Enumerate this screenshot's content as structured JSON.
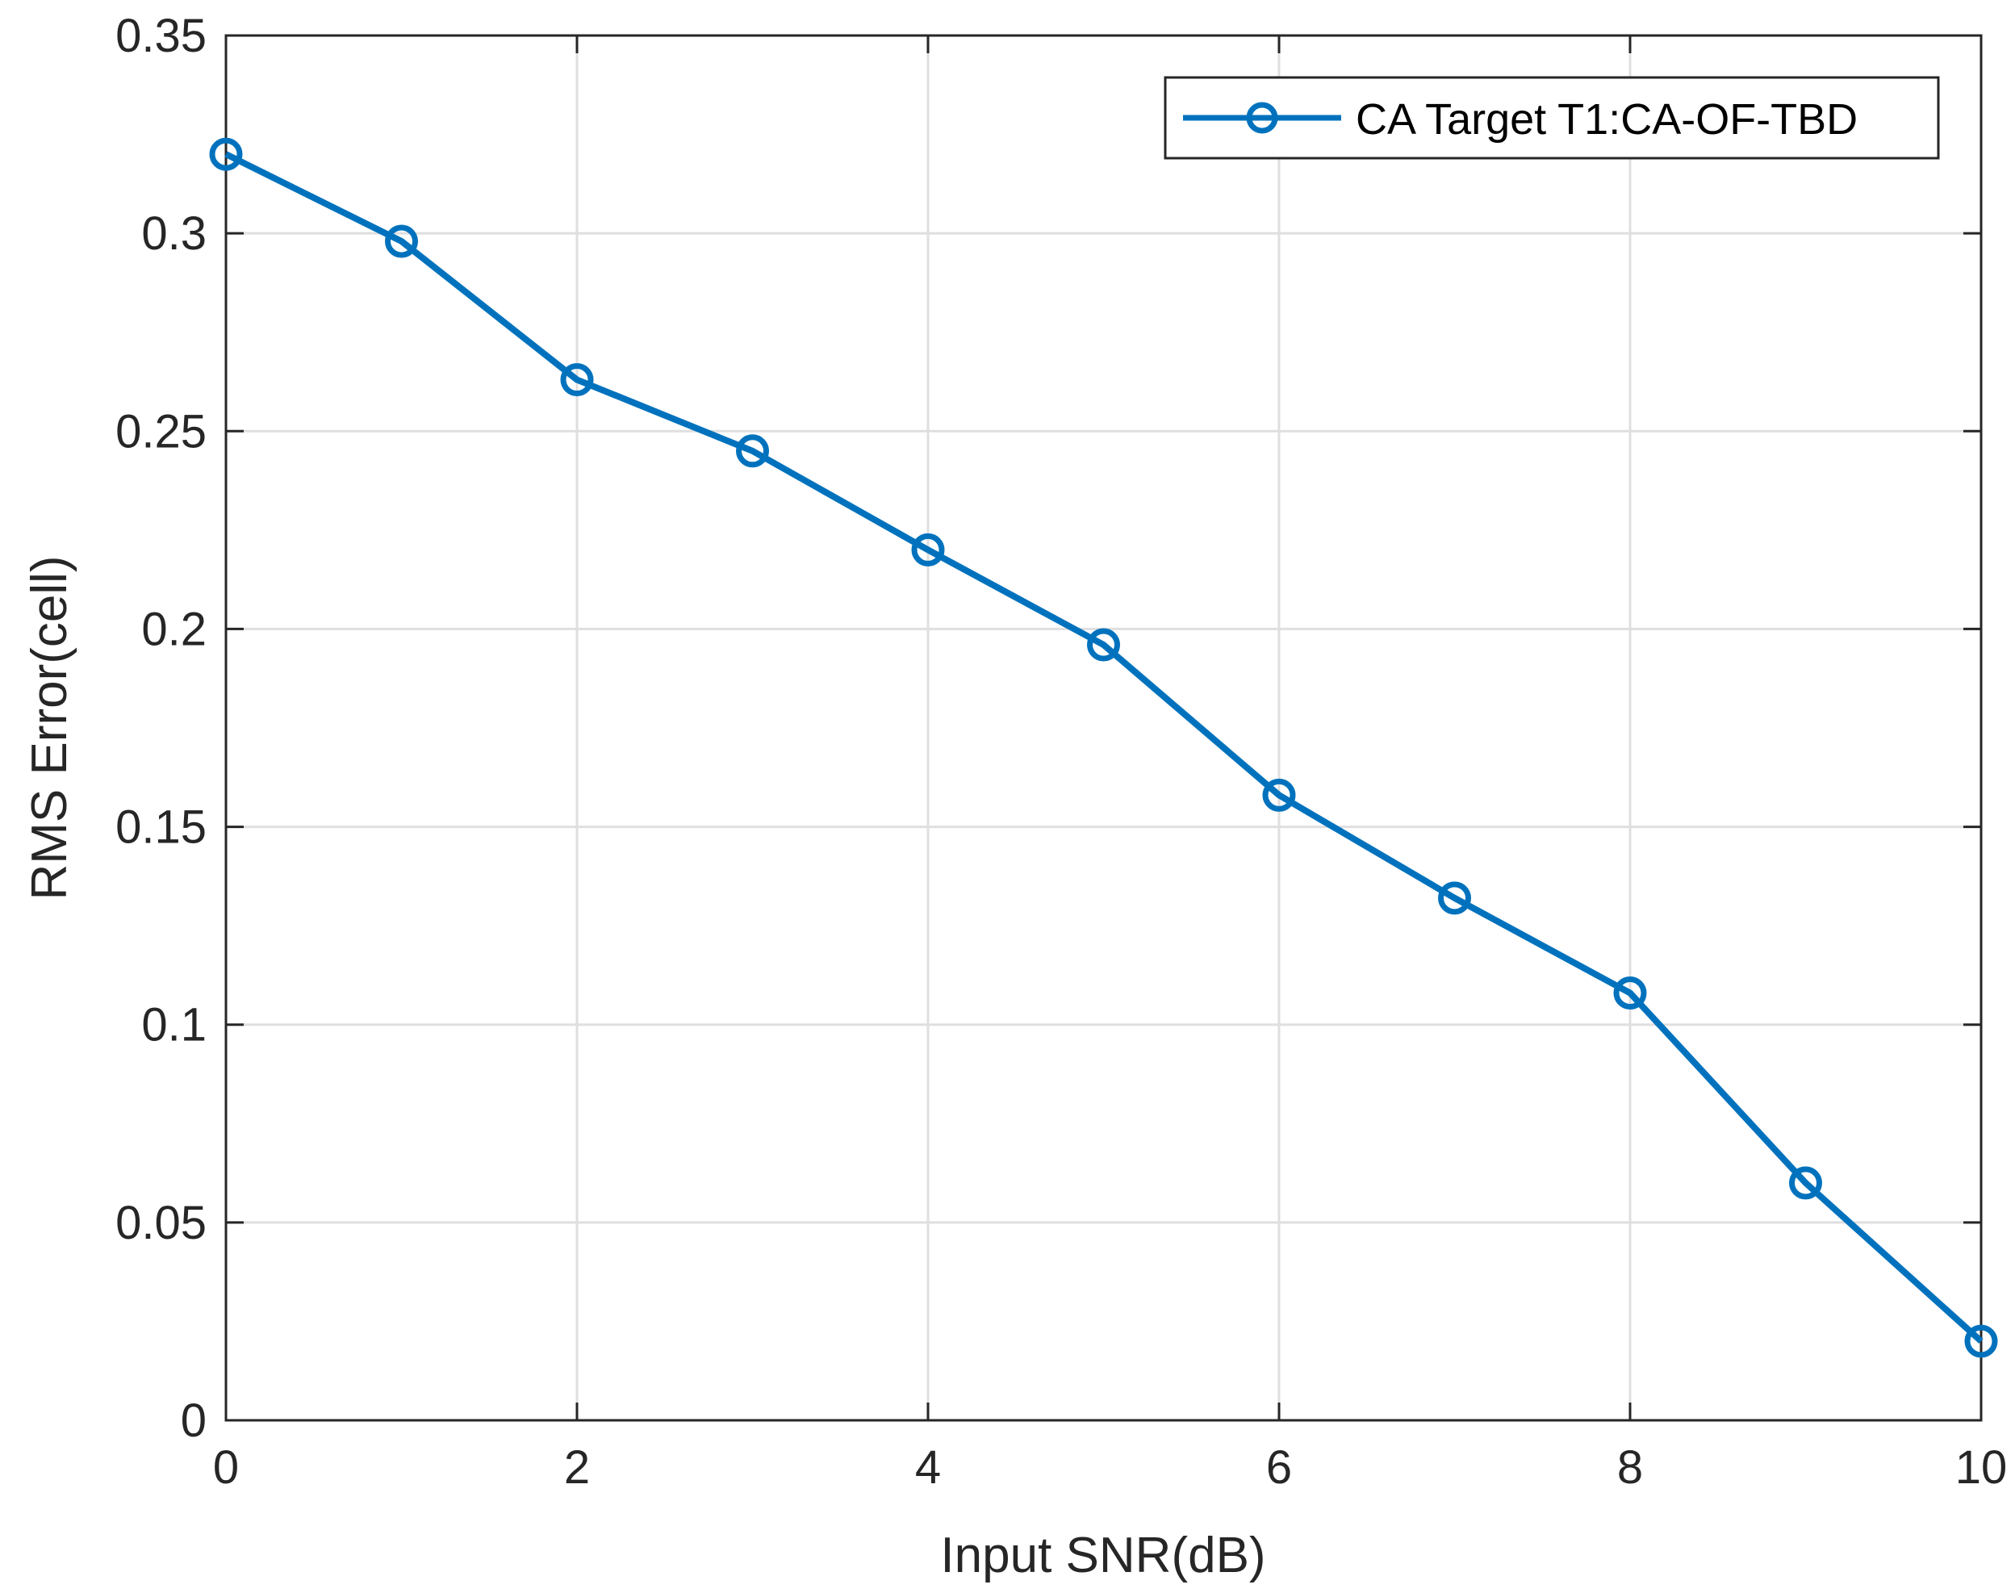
{
  "chart_data": {
    "type": "line",
    "title": "",
    "xlabel": "Input SNR(dB)",
    "ylabel": "RMS Error(cell)",
    "xlim": [
      0,
      10
    ],
    "ylim": [
      0,
      0.35
    ],
    "xticks": [
      0,
      2,
      4,
      6,
      8,
      10
    ],
    "xtick_labels": [
      "0",
      "2",
      "4",
      "6",
      "8",
      "10"
    ],
    "yticks": [
      0,
      0.05,
      0.1,
      0.15,
      0.2,
      0.25,
      0.3,
      0.35
    ],
    "ytick_labels": [
      "0",
      "0.05",
      "0.1",
      "0.15",
      "0.2",
      "0.25",
      "0.3",
      "0.35"
    ],
    "grid": true,
    "legend_position": "top-right",
    "series": [
      {
        "name": "CA Target T1:CA-OF-TBD",
        "color": "#0072BD",
        "marker": "circle",
        "x": [
          0,
          1,
          2,
          3,
          4,
          5,
          6,
          7,
          8,
          9,
          10
        ],
        "y": [
          0.32,
          0.298,
          0.263,
          0.245,
          0.22,
          0.196,
          0.158,
          0.132,
          0.108,
          0.06,
          0.02
        ]
      }
    ]
  },
  "colors": {
    "axis": "#262626",
    "grid": "#dfdfdf",
    "background": "#ffffff"
  }
}
